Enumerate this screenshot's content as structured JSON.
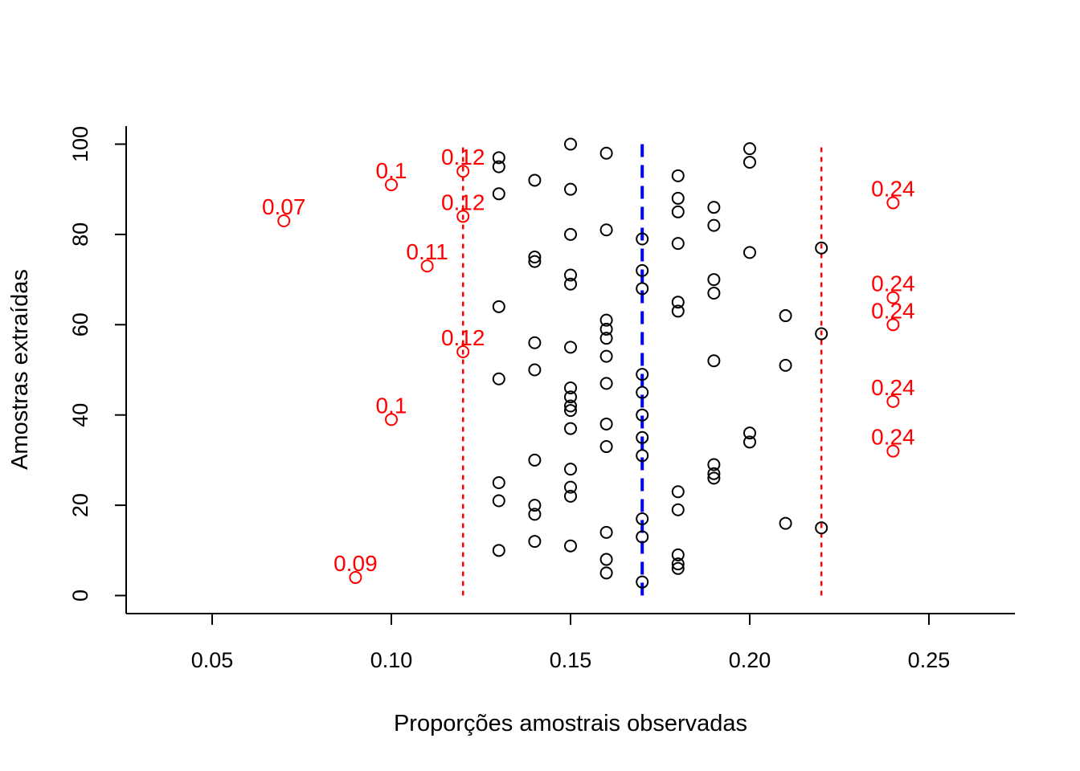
{
  "chart_data": {
    "type": "scatter",
    "title": "",
    "xlabel": "Proporções amostrais observadas",
    "ylabel": "Amostras extraídas",
    "xlim": [
      0.026,
      0.274
    ],
    "ylim": [
      -4,
      104
    ],
    "x_ticks": [
      0.05,
      0.1,
      0.15,
      0.2,
      0.25
    ],
    "x_tick_labels": [
      "0.05",
      "0.10",
      "0.15",
      "0.20",
      "0.25"
    ],
    "y_ticks": [
      0,
      20,
      40,
      60,
      80,
      100
    ],
    "y_tick_labels": [
      "0",
      "20",
      "40",
      "60",
      "80",
      "100"
    ],
    "grid": false,
    "colors": {
      "inside": "#000000",
      "outside": "#ff0000",
      "limits": "#ff0000",
      "mean": "#0000ff"
    },
    "reference_lines": [
      {
        "x": 0.12,
        "y_range": [
          0,
          100
        ],
        "color": "#ff0000",
        "style": "dotted"
      },
      {
        "x": 0.17,
        "y_range": [
          0,
          100
        ],
        "color": "#0000ff",
        "style": "dashed"
      },
      {
        "x": 0.22,
        "y_range": [
          0,
          100
        ],
        "color": "#ff0000",
        "style": "dotted"
      }
    ],
    "series": [
      {
        "points": [
          {
            "x": 0.17,
            "y": 3
          },
          {
            "x": 0.16,
            "y": 5
          },
          {
            "x": 0.18,
            "y": 6
          },
          {
            "x": 0.18,
            "y": 7
          },
          {
            "x": 0.16,
            "y": 8
          },
          {
            "x": 0.18,
            "y": 9
          },
          {
            "x": 0.13,
            "y": 10
          },
          {
            "x": 0.15,
            "y": 11
          },
          {
            "x": 0.14,
            "y": 12
          },
          {
            "x": 0.17,
            "y": 13
          },
          {
            "x": 0.16,
            "y": 14
          },
          {
            "x": 0.22,
            "y": 15
          },
          {
            "x": 0.21,
            "y": 16
          },
          {
            "x": 0.17,
            "y": 17
          },
          {
            "x": 0.14,
            "y": 18
          },
          {
            "x": 0.18,
            "y": 19
          },
          {
            "x": 0.14,
            "y": 20
          },
          {
            "x": 0.13,
            "y": 21
          },
          {
            "x": 0.15,
            "y": 22
          },
          {
            "x": 0.18,
            "y": 23
          },
          {
            "x": 0.15,
            "y": 24
          },
          {
            "x": 0.13,
            "y": 25
          },
          {
            "x": 0.19,
            "y": 26
          },
          {
            "x": 0.19,
            "y": 27
          },
          {
            "x": 0.15,
            "y": 28
          },
          {
            "x": 0.19,
            "y": 29
          },
          {
            "x": 0.14,
            "y": 30
          },
          {
            "x": 0.17,
            "y": 31
          },
          {
            "x": 0.16,
            "y": 33
          },
          {
            "x": 0.2,
            "y": 34
          },
          {
            "x": 0.17,
            "y": 35
          },
          {
            "x": 0.2,
            "y": 36
          },
          {
            "x": 0.15,
            "y": 37
          },
          {
            "x": 0.16,
            "y": 38
          },
          {
            "x": 0.17,
            "y": 40
          },
          {
            "x": 0.15,
            "y": 41
          },
          {
            "x": 0.15,
            "y": 42
          },
          {
            "x": 0.15,
            "y": 44
          },
          {
            "x": 0.17,
            "y": 45
          },
          {
            "x": 0.15,
            "y": 46
          },
          {
            "x": 0.16,
            "y": 47
          },
          {
            "x": 0.13,
            "y": 48
          },
          {
            "x": 0.17,
            "y": 49
          },
          {
            "x": 0.14,
            "y": 50
          },
          {
            "x": 0.21,
            "y": 51
          },
          {
            "x": 0.19,
            "y": 52
          },
          {
            "x": 0.16,
            "y": 53
          },
          {
            "x": 0.15,
            "y": 55
          },
          {
            "x": 0.14,
            "y": 56
          },
          {
            "x": 0.16,
            "y": 57
          },
          {
            "x": 0.22,
            "y": 58
          },
          {
            "x": 0.16,
            "y": 59
          },
          {
            "x": 0.16,
            "y": 61
          },
          {
            "x": 0.21,
            "y": 62
          },
          {
            "x": 0.18,
            "y": 63
          },
          {
            "x": 0.13,
            "y": 64
          },
          {
            "x": 0.18,
            "y": 65
          },
          {
            "x": 0.19,
            "y": 67
          },
          {
            "x": 0.17,
            "y": 68
          },
          {
            "x": 0.15,
            "y": 69
          },
          {
            "x": 0.19,
            "y": 70
          },
          {
            "x": 0.15,
            "y": 71
          },
          {
            "x": 0.17,
            "y": 72
          },
          {
            "x": 0.14,
            "y": 74
          },
          {
            "x": 0.14,
            "y": 75
          },
          {
            "x": 0.2,
            "y": 76
          },
          {
            "x": 0.22,
            "y": 77
          },
          {
            "x": 0.18,
            "y": 78
          },
          {
            "x": 0.17,
            "y": 79
          },
          {
            "x": 0.15,
            "y": 80
          },
          {
            "x": 0.16,
            "y": 81
          },
          {
            "x": 0.19,
            "y": 82
          },
          {
            "x": 0.18,
            "y": 85
          },
          {
            "x": 0.19,
            "y": 86
          },
          {
            "x": 0.18,
            "y": 88
          },
          {
            "x": 0.13,
            "y": 89
          },
          {
            "x": 0.15,
            "y": 90
          },
          {
            "x": 0.14,
            "y": 92
          },
          {
            "x": 0.18,
            "y": 93
          },
          {
            "x": 0.13,
            "y": 95
          },
          {
            "x": 0.2,
            "y": 96
          },
          {
            "x": 0.13,
            "y": 97
          },
          {
            "x": 0.16,
            "y": 98
          },
          {
            "x": 0.2,
            "y": 99
          },
          {
            "x": 0.15,
            "y": 100
          }
        ]
      },
      {
        "points": [
          {
            "x": 0.09,
            "y": 4,
            "label": "0.09"
          },
          {
            "x": 0.24,
            "y": 32,
            "label": "0.24"
          },
          {
            "x": 0.1,
            "y": 39,
            "label": "0.1"
          },
          {
            "x": 0.24,
            "y": 43,
            "label": "0.24"
          },
          {
            "x": 0.12,
            "y": 54,
            "label": "0.12"
          },
          {
            "x": 0.24,
            "y": 60,
            "label": "0.24"
          },
          {
            "x": 0.24,
            "y": 66,
            "label": "0.24"
          },
          {
            "x": 0.11,
            "y": 73,
            "label": "0.11"
          },
          {
            "x": 0.07,
            "y": 83,
            "label": "0.07"
          },
          {
            "x": 0.12,
            "y": 84,
            "label": "0.12"
          },
          {
            "x": 0.24,
            "y": 87,
            "label": "0.24"
          },
          {
            "x": 0.1,
            "y": 91,
            "label": "0.1"
          },
          {
            "x": 0.12,
            "y": 94,
            "label": "0.12"
          }
        ]
      }
    ]
  }
}
